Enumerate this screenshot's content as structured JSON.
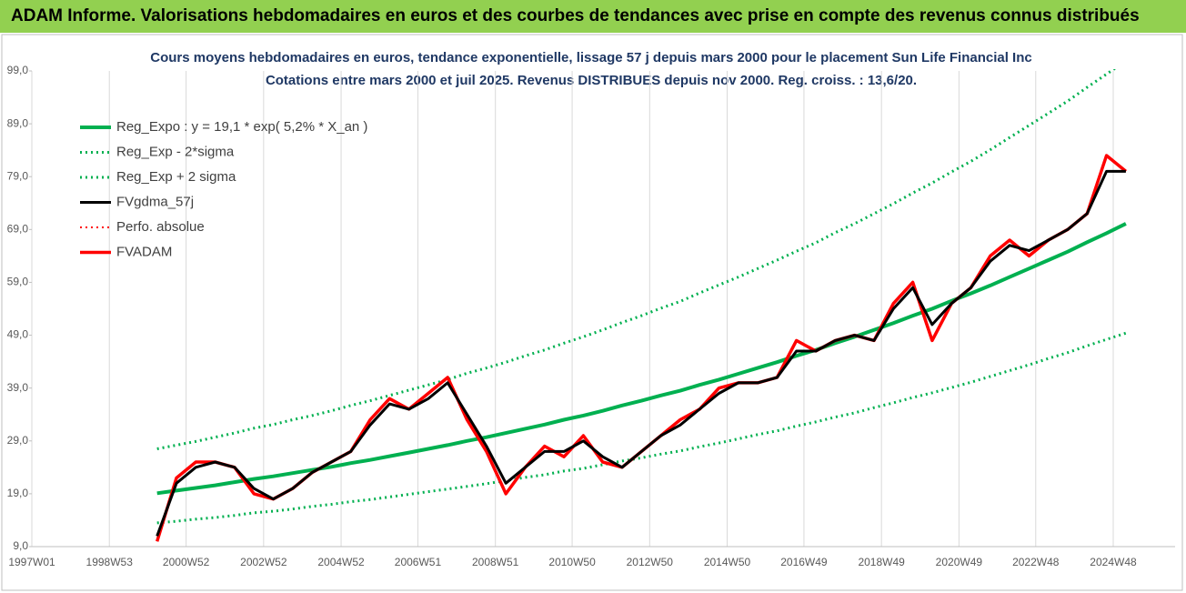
{
  "header": "ADAM Informe. Valorisations hebdomadaires en euros et des courbes de tendances avec prise en compte des revenus connus distribués",
  "chart_data": {
    "type": "line",
    "title": "Cours moyens hebdomadaires en euros, tendance exponentielle, lissage 57 j depuis mars 2000 pour le placement Sun Life Financial Inc",
    "subtitle": "Cotations entre mars 2000 et juil 2025. Revenus DISTRIBUES depuis nov 2000. Reg. croiss. : 13,6/20.",
    "x": [
      "2000W13",
      "2000W39",
      "2001W13",
      "2001W39",
      "2002W13",
      "2002W39",
      "2003W13",
      "2003W39",
      "2004W13",
      "2004W39",
      "2005W13",
      "2005W39",
      "2006W13",
      "2006W39",
      "2007W13",
      "2007W39",
      "2008W13",
      "2008W39",
      "2009W13",
      "2009W39",
      "2010W13",
      "2010W39",
      "2011W13",
      "2011W39",
      "2012W13",
      "2012W39",
      "2013W13",
      "2013W39",
      "2014W13",
      "2014W39",
      "2015W13",
      "2015W39",
      "2016W13",
      "2016W39",
      "2017W13",
      "2017W39",
      "2018W13",
      "2018W39",
      "2019W13",
      "2019W39",
      "2020W13",
      "2020W39",
      "2021W13",
      "2021W39",
      "2022W13",
      "2022W39",
      "2023W13",
      "2023W39",
      "2024W13",
      "2024W39",
      "2025W13"
    ],
    "series": [
      {
        "name": "Reg_Expo : y = 19,1 * exp( 5,2% *  X_an )",
        "color": "#00b050",
        "style": "solid",
        "width": 4,
        "values": [
          19.1,
          19.6,
          20.1,
          20.6,
          21.2,
          21.8,
          22.3,
          22.9,
          23.5,
          24.1,
          24.8,
          25.4,
          26.1,
          26.8,
          27.5,
          28.2,
          29.0,
          29.7,
          30.5,
          31.3,
          32.1,
          33.0,
          33.8,
          34.7,
          35.7,
          36.6,
          37.6,
          38.5,
          39.6,
          40.6,
          41.7,
          42.8,
          43.9,
          45.1,
          46.2,
          47.5,
          48.7,
          50.0,
          51.3,
          52.7,
          54.0,
          55.5,
          56.9,
          58.4,
          60.0,
          61.6,
          63.2,
          64.8,
          66.6,
          68.3,
          70.1
        ]
      },
      {
        "name": "Reg_Exp - 2*sigma",
        "color": "#00b050",
        "style": "dotted",
        "width": 3,
        "values": [
          13.5,
          13.8,
          14.2,
          14.5,
          14.9,
          15.4,
          15.7,
          16.1,
          16.6,
          17.0,
          17.5,
          17.9,
          18.4,
          18.9,
          19.4,
          19.9,
          20.4,
          20.9,
          21.5,
          22.1,
          22.6,
          23.3,
          23.8,
          24.5,
          25.2,
          25.8,
          26.5,
          27.1,
          27.9,
          28.6,
          29.4,
          30.2,
          30.9,
          31.8,
          32.6,
          33.5,
          34.3,
          35.3,
          36.2,
          37.2,
          38.1,
          39.1,
          40.1,
          41.2,
          42.3,
          43.4,
          44.6,
          45.7,
          47.0,
          48.2,
          49.4
        ]
      },
      {
        "name": "Reg_Exp + 2 sigma",
        "color": "#00b050",
        "style": "dotted",
        "width": 3,
        "values": [
          27.5,
          28.2,
          28.9,
          29.7,
          30.5,
          31.4,
          32.1,
          33.0,
          33.8,
          34.7,
          35.7,
          36.6,
          37.6,
          38.6,
          39.6,
          40.6,
          41.8,
          42.8,
          43.9,
          45.1,
          46.2,
          47.5,
          48.7,
          50.0,
          51.4,
          52.7,
          54.1,
          55.4,
          57.0,
          58.5,
          60.0,
          61.6,
          63.2,
          64.9,
          66.5,
          68.4,
          70.1,
          72.0,
          73.9,
          75.9,
          77.8,
          79.9,
          81.9,
          84.1,
          86.4,
          88.7,
          91.0,
          93.3,
          95.9,
          98.4,
          100.9
        ]
      },
      {
        "name": "FVgdma_57j",
        "color": "#000000",
        "style": "solid",
        "width": 3,
        "values": [
          11,
          21,
          24,
          25,
          24,
          20,
          18,
          20,
          23,
          25,
          27,
          32,
          36,
          35,
          37,
          40,
          34,
          28,
          21,
          24,
          27,
          27,
          29,
          26,
          24,
          27,
          30,
          32,
          35,
          38,
          40,
          40,
          41,
          46,
          46,
          48,
          49,
          48,
          54,
          58,
          51,
          55,
          58,
          63,
          66,
          65,
          67,
          69,
          72,
          80,
          80
        ]
      },
      {
        "name": "Perfo. absolue",
        "color": "#ff0000",
        "style": "dotted",
        "width": 2,
        "values": [
          10,
          22,
          25,
          25,
          24,
          19,
          18,
          20,
          23,
          25,
          27,
          33,
          37,
          35,
          38,
          41,
          33,
          27,
          19,
          24,
          28,
          26,
          30,
          25,
          24,
          27,
          30,
          33,
          35,
          39,
          40,
          40,
          41,
          48,
          46,
          48,
          49,
          48,
          55,
          59,
          48,
          55,
          58,
          64,
          67,
          64,
          67,
          69,
          72,
          83,
          80
        ]
      },
      {
        "name": "FVADAM",
        "color": "#ff0000",
        "style": "solid",
        "width": 3.5,
        "values": [
          10,
          22,
          25,
          25,
          24,
          19,
          18,
          20,
          23,
          25,
          27,
          33,
          37,
          35,
          38,
          41,
          33,
          27,
          19,
          24,
          28,
          26,
          30,
          25,
          24,
          27,
          30,
          33,
          35,
          39,
          40,
          40,
          41,
          48,
          46,
          48,
          49,
          48,
          55,
          59,
          48,
          55,
          58,
          64,
          67,
          64,
          67,
          69,
          72,
          83,
          80
        ]
      }
    ],
    "xlim": [
      "1997W01",
      "2026W27"
    ],
    "xticks": [
      "1997W01",
      "1998W53",
      "2000W52",
      "2002W52",
      "2004W52",
      "2006W51",
      "2008W51",
      "2010W50",
      "2012W50",
      "2014W50",
      "2016W49",
      "2018W49",
      "2020W49",
      "2022W48",
      "2024W48"
    ],
    "ylim": [
      9,
      99
    ],
    "yticks": [
      {
        "value": 9,
        "label": "9,0"
      },
      {
        "value": 19,
        "label": "19,0"
      },
      {
        "value": 29,
        "label": "29,0"
      },
      {
        "value": 39,
        "label": "39,0"
      },
      {
        "value": 49,
        "label": "49,0"
      },
      {
        "value": 59,
        "label": "59,0"
      },
      {
        "value": 69,
        "label": "69,0"
      },
      {
        "value": 79,
        "label": "79,0"
      },
      {
        "value": 89,
        "label": "89,0"
      },
      {
        "value": 99,
        "label": "99,0"
      }
    ],
    "grid": "x",
    "legend": "upper-left"
  }
}
